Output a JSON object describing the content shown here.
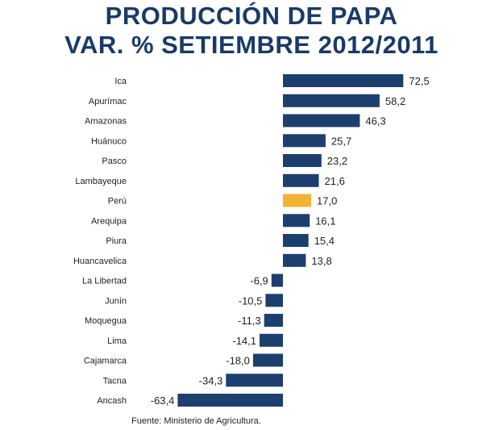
{
  "title_lines": [
    "PRODUCCIÓN DE PAPA",
    "VAR. % SETIEMBRE 2012/2011"
  ],
  "source": "Fuente: Ministerio de Agricultura.",
  "colors": {
    "bar": "#1c3f6e",
    "highlight": "#f2b233",
    "title": "#1a3a66"
  },
  "chart_data": {
    "type": "bar",
    "orientation": "horizontal",
    "title": "PRODUCCIÓN DE PAPA VAR. % SETIEMBRE 2012/2011",
    "categories": [
      "Ica",
      "Apurímac",
      "Amazonas",
      "Huánuco",
      "Pasco",
      "Lambayeque",
      "Perú",
      "Arequipa",
      "Piura",
      "Huancavelica",
      "La Libertad",
      "Junín",
      "Moquegua",
      "Lima",
      "Cajamarca",
      "Tacna",
      "Ancash"
    ],
    "values": [
      72.5,
      58.2,
      46.3,
      25.7,
      23.2,
      21.6,
      17.0,
      16.1,
      15.4,
      13.8,
      -6.9,
      -10.5,
      -11.3,
      -14.1,
      -18.0,
      -34.3,
      -63.4
    ],
    "value_labels": [
      "72,5",
      "58,2",
      "46,3",
      "25,7",
      "23,2",
      "21,6",
      "17,0",
      "16,1",
      "15,4",
      "13,8",
      "-6,9",
      "-10,5",
      "-11,3",
      "-14,1",
      "-18,0",
      "-34,3",
      "-63,4"
    ],
    "highlight": "Perú",
    "xlabel": "",
    "ylabel": "",
    "grid": false
  }
}
